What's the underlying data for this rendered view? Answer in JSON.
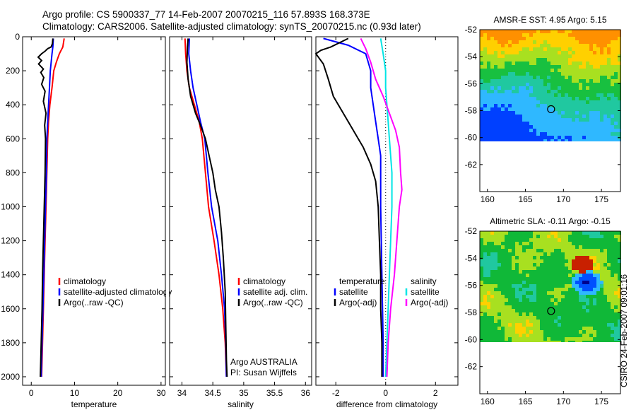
{
  "title": {
    "line1": "Argo profile: CS 5900337_77 14-Feb-2007 20070215_116 57.893S 168.373E",
    "line2": "Climatology: CARS2006. Satellite-adjusted climatology: synTS_20070215.nc (0.93d later)"
  },
  "credit": "CSIRO 24-Feb-2007 09:01:16",
  "colors": {
    "red": "#ff0000",
    "blue": "#0000ff",
    "black": "#000000",
    "cyan": "#00e5e5",
    "magenta": "#ff00ff"
  },
  "chart_data": [
    {
      "type": "line",
      "name": "temperature-panel",
      "xlabel": "temperature",
      "xlim": [
        -2,
        31
      ],
      "ylim": [
        2050,
        0
      ],
      "xticks": [
        "0",
        "10",
        "20",
        "30"
      ],
      "yticks": [
        "0",
        "200",
        "400",
        "600",
        "800",
        "1000",
        "1200",
        "1400",
        "1600",
        "1800",
        "2000"
      ],
      "legend": [
        "climatology",
        "satellite-adjusted climatology",
        "Argo(..raw -QC)"
      ],
      "series": [
        {
          "name": "climatology",
          "color": "red",
          "points": [
            [
              7.6,
              10
            ],
            [
              7.3,
              60
            ],
            [
              6.5,
              100
            ],
            [
              5.8,
              150
            ],
            [
              5.2,
              200
            ],
            [
              4.8,
              300
            ],
            [
              4.3,
              400
            ],
            [
              4.0,
              500
            ],
            [
              3.8,
              600
            ],
            [
              3.6,
              800
            ],
            [
              3.4,
              1000
            ],
            [
              3.2,
              1200
            ],
            [
              3.0,
              1400
            ],
            [
              2.8,
              1600
            ],
            [
              2.6,
              1800
            ],
            [
              2.4,
              2000
            ]
          ]
        },
        {
          "name": "satellite-adjusted climatology",
          "color": "blue",
          "points": [
            [
              5.1,
              10
            ],
            [
              5.0,
              60
            ],
            [
              4.8,
              100
            ],
            [
              4.6,
              150
            ],
            [
              4.4,
              200
            ],
            [
              4.2,
              300
            ],
            [
              4.0,
              400
            ],
            [
              3.8,
              500
            ],
            [
              3.6,
              600
            ],
            [
              3.5,
              800
            ],
            [
              3.3,
              1000
            ],
            [
              3.1,
              1200
            ],
            [
              2.9,
              1400
            ],
            [
              2.7,
              1600
            ],
            [
              2.5,
              1800
            ],
            [
              2.3,
              2000
            ]
          ]
        },
        {
          "name": "Argo(..raw -QC)",
          "color": "black",
          "points": [
            [
              5.0,
              10
            ],
            [
              4.9,
              40
            ],
            [
              4.6,
              60
            ],
            [
              3.8,
              70
            ],
            [
              3.2,
              85
            ],
            [
              2.4,
              100
            ],
            [
              1.6,
              120
            ],
            [
              2.4,
              140
            ],
            [
              1.7,
              160
            ],
            [
              2.8,
              190
            ],
            [
              2.2,
              210
            ],
            [
              2.9,
              240
            ],
            [
              2.4,
              280
            ],
            [
              3.2,
              320
            ],
            [
              2.8,
              380
            ],
            [
              3.4,
              450
            ],
            [
              3.1,
              520
            ],
            [
              3.3,
              600
            ],
            [
              3.2,
              800
            ],
            [
              3.0,
              1000
            ],
            [
              2.8,
              1200
            ],
            [
              2.6,
              1400
            ],
            [
              2.5,
              1600
            ],
            [
              2.3,
              1800
            ],
            [
              2.1,
              2000
            ]
          ]
        }
      ]
    },
    {
      "type": "line",
      "name": "salinity-panel",
      "xlabel": "salinity",
      "xlim": [
        33.8,
        36.1
      ],
      "ylim": [
        2050,
        0
      ],
      "xticks": [
        "34",
        "34.5",
        "35",
        "35.5",
        "36"
      ],
      "legend": [
        "climatology",
        "satellite adj. clim.",
        "Argo(..raw -QC)"
      ],
      "annotation": [
        "Argo AUSTRALIA",
        "PI: Susan Wijffels"
      ],
      "series": [
        {
          "name": "climatology",
          "color": "red",
          "points": [
            [
              34.05,
              10
            ],
            [
              34.06,
              100
            ],
            [
              34.08,
              200
            ],
            [
              34.12,
              300
            ],
            [
              34.2,
              400
            ],
            [
              34.28,
              500
            ],
            [
              34.33,
              600
            ],
            [
              34.38,
              800
            ],
            [
              34.43,
              1000
            ],
            [
              34.52,
              1200
            ],
            [
              34.6,
              1400
            ],
            [
              34.66,
              1600
            ],
            [
              34.7,
              1800
            ],
            [
              34.72,
              2000
            ]
          ]
        },
        {
          "name": "satellite adj. clim.",
          "color": "blue",
          "points": [
            [
              34.12,
              10
            ],
            [
              34.11,
              100
            ],
            [
              34.14,
              200
            ],
            [
              34.18,
              300
            ],
            [
              34.24,
              400
            ],
            [
              34.3,
              500
            ],
            [
              34.37,
              600
            ],
            [
              34.42,
              800
            ],
            [
              34.48,
              1000
            ],
            [
              34.58,
              1200
            ],
            [
              34.64,
              1400
            ],
            [
              34.69,
              1600
            ],
            [
              34.71,
              1800
            ],
            [
              34.72,
              2000
            ]
          ]
        },
        {
          "name": "Argo(..raw -QC)",
          "color": "black",
          "points": [
            [
              34.1,
              10
            ],
            [
              34.09,
              60
            ],
            [
              34.08,
              150
            ],
            [
              34.1,
              250
            ],
            [
              34.14,
              350
            ],
            [
              34.22,
              450
            ],
            [
              34.3,
              520
            ],
            [
              34.38,
              600
            ],
            [
              34.44,
              700
            ],
            [
              34.5,
              800
            ],
            [
              34.54,
              900
            ],
            [
              34.6,
              1000
            ],
            [
              34.64,
              1150
            ],
            [
              34.67,
              1300
            ],
            [
              34.7,
              1500
            ],
            [
              34.71,
              1700
            ],
            [
              34.72,
              1900
            ],
            [
              34.73,
              2000
            ]
          ]
        }
      ]
    },
    {
      "type": "line",
      "name": "difference-panel",
      "xlabel": "difference from climatology",
      "xlim": [
        -2.8,
        2.9
      ],
      "ylim": [
        2050,
        0
      ],
      "xticks": [
        "-2",
        "0",
        "2"
      ],
      "legend_left": [
        "temperature",
        "satellite",
        "Argo(-adj)"
      ],
      "legend_right": [
        "salinity",
        "satellite",
        "Argo(-adj)"
      ],
      "series": [
        {
          "name": "temperature satellite",
          "color": "blue",
          "points": [
            [
              -2.5,
              10
            ],
            [
              -1.5,
              50
            ],
            [
              -0.8,
              100
            ],
            [
              -0.7,
              150
            ],
            [
              -0.6,
              200
            ],
            [
              -0.6,
              300
            ],
            [
              -0.5,
              400
            ],
            [
              -0.4,
              500
            ],
            [
              -0.3,
              600
            ],
            [
              -0.2,
              700
            ],
            [
              -0.2,
              1000
            ],
            [
              -0.15,
              1400
            ],
            [
              -0.1,
              1800
            ],
            [
              -0.1,
              2000
            ]
          ]
        },
        {
          "name": "temperature Argo(-adj)",
          "color": "black",
          "points": [
            [
              -1.5,
              10
            ],
            [
              -2.2,
              60
            ],
            [
              -2.6,
              80
            ],
            [
              -2.8,
              100
            ],
            [
              -2.5,
              160
            ],
            [
              -2.3,
              250
            ],
            [
              -2.1,
              350
            ],
            [
              -1.7,
              450
            ],
            [
              -1.3,
              550
            ],
            [
              -0.9,
              650
            ],
            [
              -0.6,
              750
            ],
            [
              -0.4,
              850
            ],
            [
              -0.3,
              1000
            ],
            [
              -0.25,
              1200
            ],
            [
              -0.2,
              1400
            ],
            [
              -0.2,
              1600
            ],
            [
              -0.15,
              1800
            ],
            [
              -0.15,
              2000
            ]
          ]
        },
        {
          "name": "salinity satellite",
          "color": "cyan",
          "points": [
            [
              -0.2,
              10
            ],
            [
              -0.1,
              100
            ],
            [
              0.0,
              200
            ],
            [
              0.0,
              300
            ],
            [
              0.05,
              400
            ],
            [
              0.1,
              500
            ],
            [
              0.15,
              600
            ],
            [
              0.2,
              700
            ],
            [
              0.25,
              800
            ],
            [
              0.25,
              1000
            ],
            [
              0.2,
              1200
            ],
            [
              0.15,
              1400
            ],
            [
              0.1,
              1600
            ],
            [
              0.05,
              1800
            ],
            [
              0.0,
              2000
            ]
          ]
        },
        {
          "name": "salinity Argo(-adj)",
          "color": "magenta",
          "points": [
            [
              -1.0,
              10
            ],
            [
              -0.8,
              70
            ],
            [
              -0.6,
              150
            ],
            [
              -0.4,
              250
            ],
            [
              -0.1,
              350
            ],
            [
              0.15,
              450
            ],
            [
              0.4,
              550
            ],
            [
              0.55,
              650
            ],
            [
              0.6,
              800
            ],
            [
              0.65,
              900
            ],
            [
              0.55,
              1000
            ],
            [
              0.45,
              1200
            ],
            [
              0.35,
              1400
            ],
            [
              0.2,
              1600
            ],
            [
              0.1,
              1800
            ],
            [
              0.05,
              2000
            ]
          ]
        }
      ]
    },
    {
      "type": "heatmap",
      "name": "sst-map",
      "title": "AMSR-E SST: 4.95  Argo: 5.15",
      "xlim": [
        159,
        177.5
      ],
      "ylim": [
        -64,
        -52
      ],
      "xticks": [
        "160",
        "165",
        "170",
        "175"
      ],
      "yticks": [
        "-52",
        "-54",
        "-56",
        "-58",
        "-60",
        "-62"
      ],
      "marker": [
        168.373,
        -57.893
      ]
    },
    {
      "type": "heatmap",
      "name": "sla-map",
      "title": "Altimetric SLA: -0.11  Argo: -0.15",
      "xlim": [
        159,
        177.5
      ],
      "ylim": [
        -64,
        -52
      ],
      "xticks": [
        "160",
        "165",
        "170",
        "175"
      ],
      "yticks": [
        "-52",
        "-54",
        "-56",
        "-58",
        "-60",
        "-62"
      ],
      "marker": [
        168.373,
        -57.893
      ]
    }
  ]
}
